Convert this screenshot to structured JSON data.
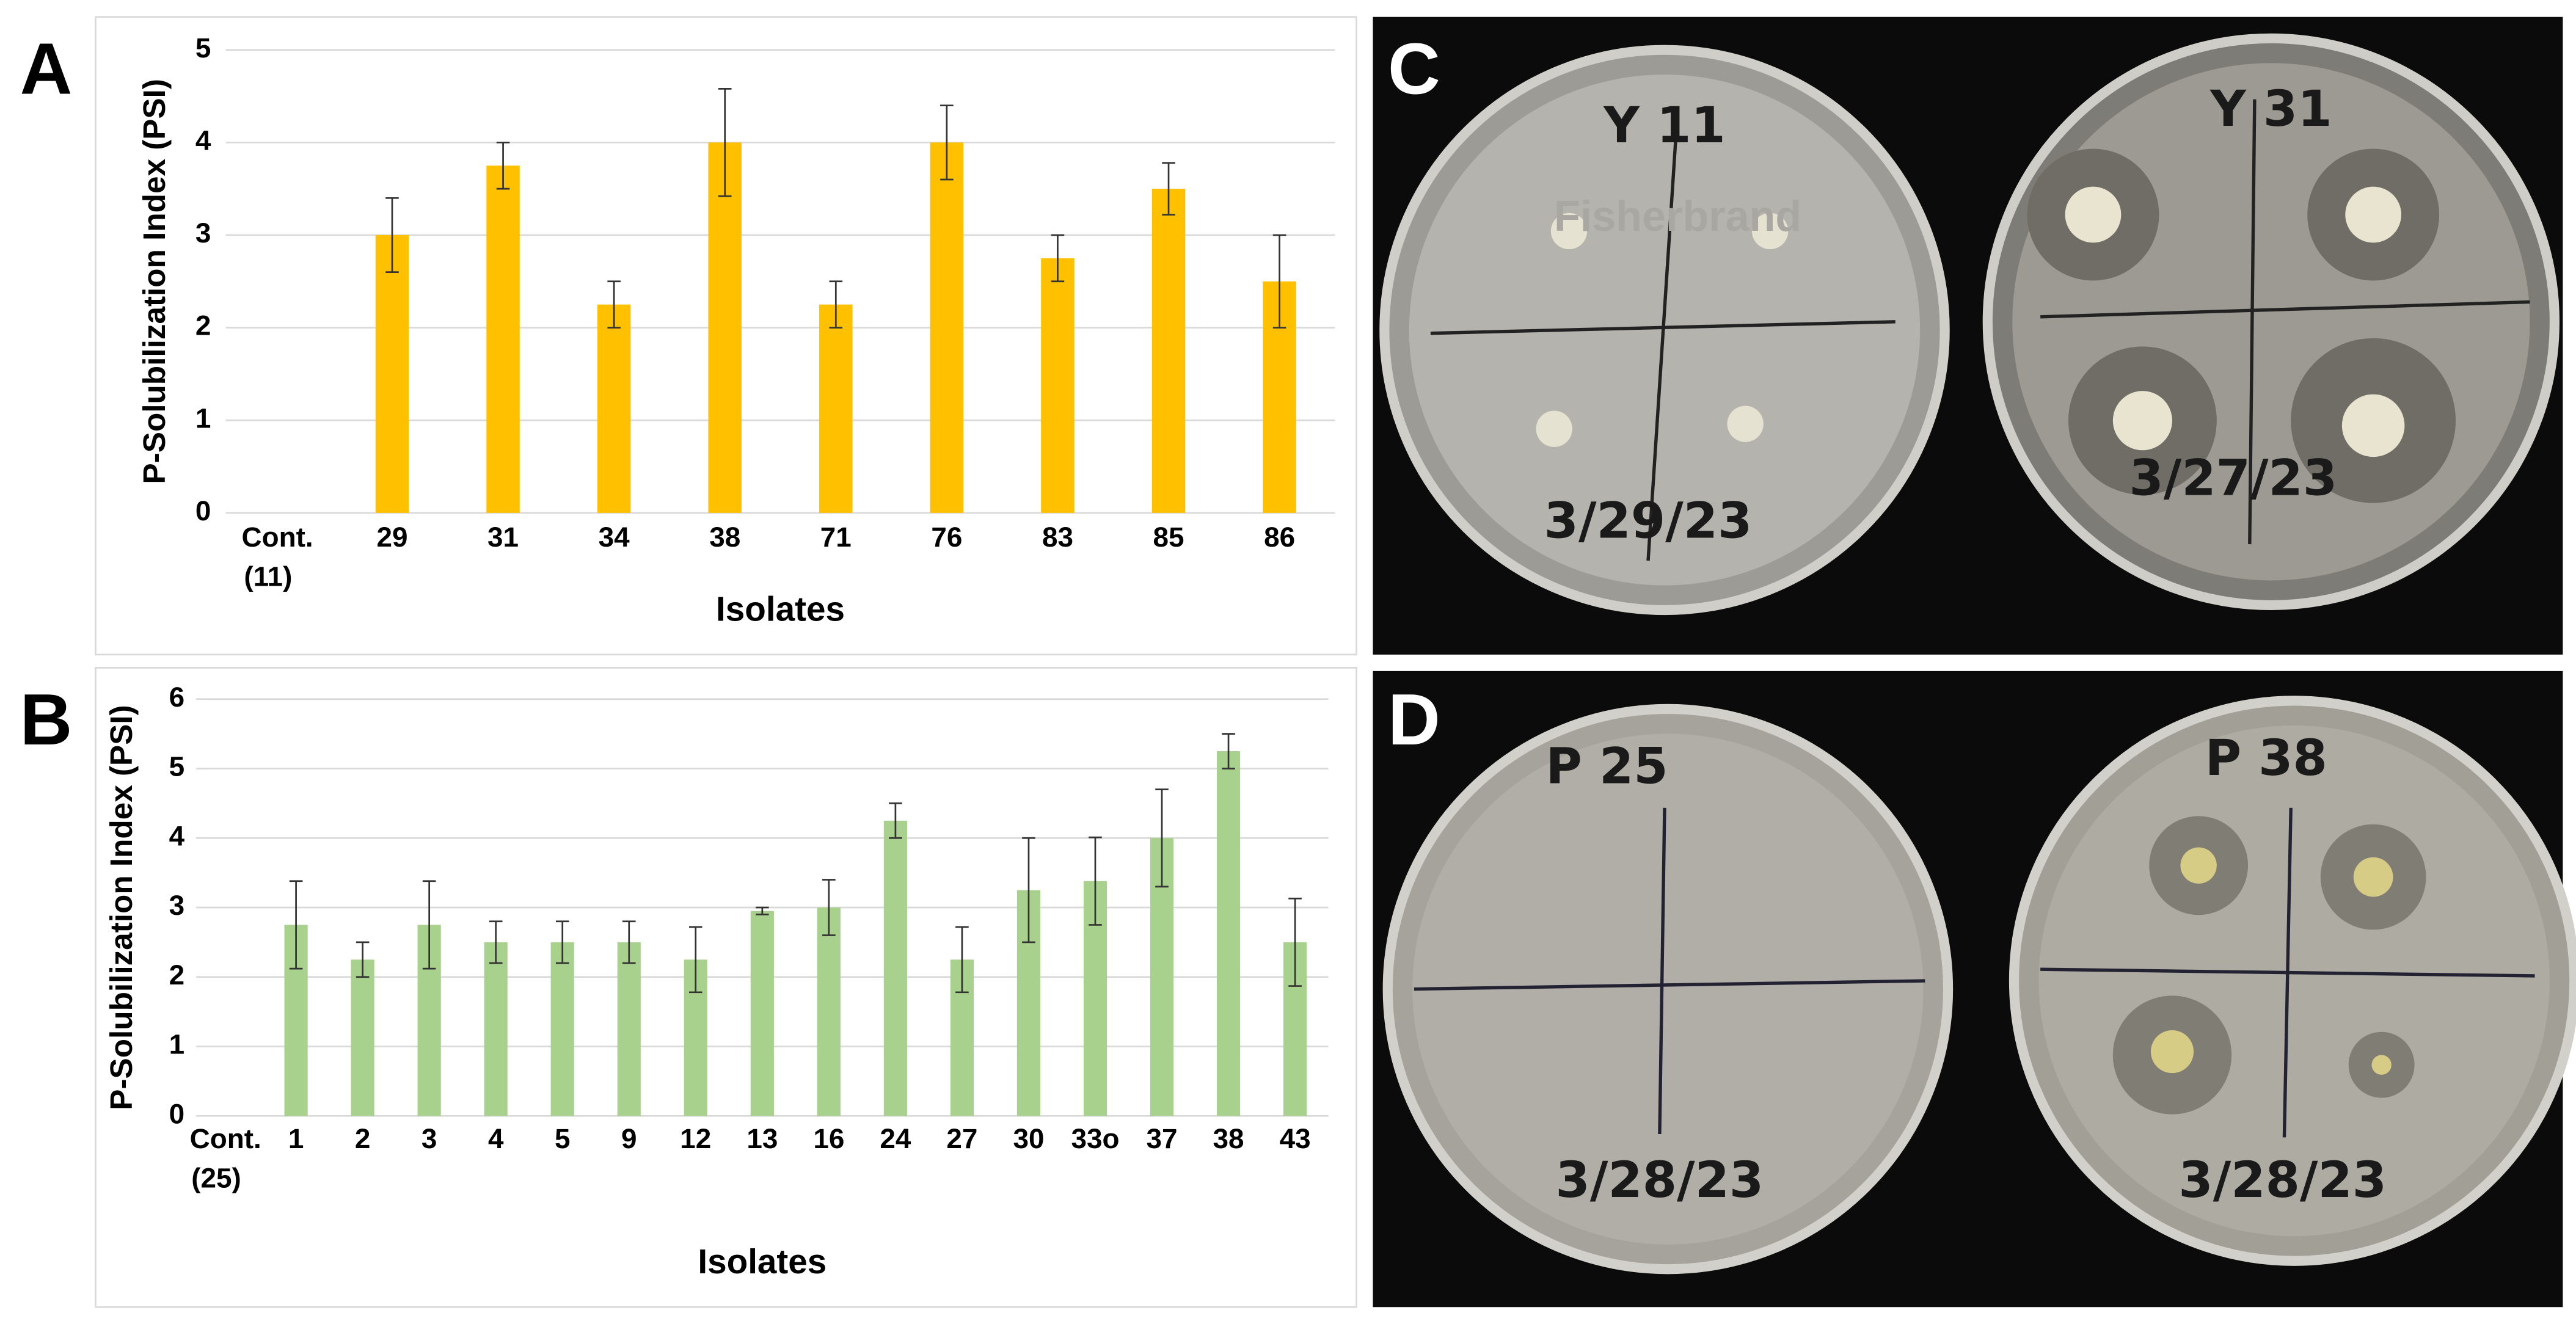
{
  "panel_labels": [
    "A",
    "B",
    "C",
    "D"
  ],
  "chart_data": [
    {
      "type": "bar",
      "y_label": "P-Solubilization Index (PSI)",
      "x_label": "Isolates",
      "categories": [
        "Cont. (11)",
        "29",
        "31",
        "34",
        "38",
        "71",
        "76",
        "83",
        "85",
        "86"
      ],
      "values": [
        0,
        3.0,
        3.75,
        2.25,
        4.0,
        2.25,
        4.0,
        2.75,
        3.5,
        2.5
      ],
      "errors": [
        0,
        0.4,
        0.25,
        0.25,
        0.58,
        0.25,
        0.4,
        0.25,
        0.28,
        0.5
      ],
      "color": "#ffc000",
      "ylim": [
        0,
        5
      ],
      "yticks": [
        0,
        1,
        2,
        3,
        4,
        5
      ],
      "grid": true
    },
    {
      "type": "bar",
      "y_label": "P-Solubilization Index (PSI)",
      "x_label": "Isolates",
      "categories": [
        "Cont. (25)",
        "1",
        "2",
        "3",
        "4",
        "5",
        "9",
        "12",
        "13",
        "16",
        "24",
        "27",
        "30",
        "33o",
        "37",
        "38",
        "43"
      ],
      "values": [
        0,
        2.75,
        2.25,
        2.75,
        2.5,
        2.5,
        2.5,
        2.25,
        2.95,
        3.0,
        4.25,
        2.25,
        3.25,
        3.38,
        4.0,
        5.25,
        2.5
      ],
      "errors": [
        0,
        0.63,
        0.25,
        0.63,
        0.3,
        0.3,
        0.3,
        0.47,
        0.05,
        0.4,
        0.25,
        0.47,
        0.75,
        0.63,
        0.7,
        0.25,
        0.63
      ],
      "color": "#a9d18e",
      "ylim": [
        0,
        6
      ],
      "yticks": [
        0,
        1,
        2,
        3,
        4,
        5,
        6
      ],
      "grid": true
    }
  ],
  "photos": [
    {
      "left": {
        "label": "Y 11",
        "date": "3/29/23",
        "brand": "Fisherbrand"
      },
      "right": {
        "label": "Y 31",
        "date": "3/27/23"
      }
    },
    {
      "left": {
        "label": "P 25",
        "date": "3/28/23"
      },
      "right": {
        "label": "P 38",
        "date": "3/28/23"
      }
    }
  ]
}
